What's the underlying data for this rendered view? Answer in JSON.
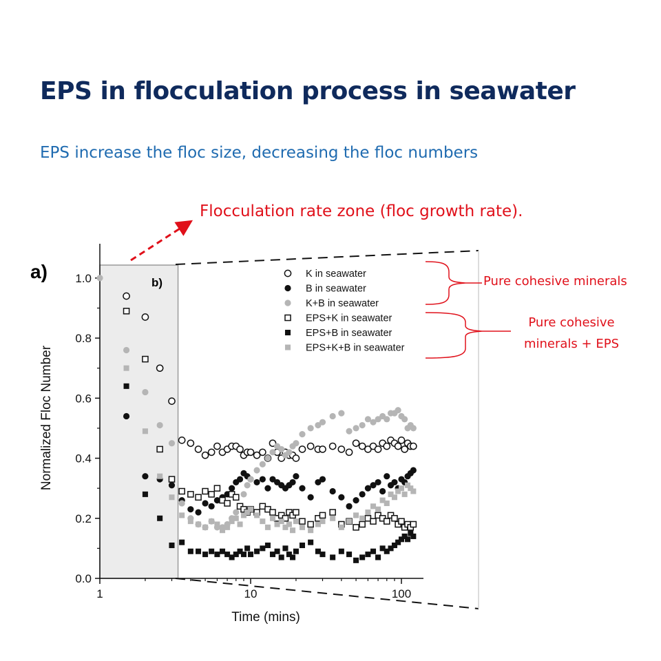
{
  "slide": {
    "title": "EPS in flocculation process in seawater",
    "subtitle": "EPS increase the floc size, decreasing the floc numbers",
    "zone_annotation": "Flocculation rate zone (floc growth rate).",
    "group1_label": "Pure cohesive minerals",
    "group2_label_line1": "Pure cohesive",
    "group2_label_line2": "minerals + EPS",
    "annotation_color": "#e0101a",
    "title_color": "#0f2a5c",
    "subtitle_color": "#1f6bb0"
  },
  "chart_data": {
    "type": "scatter",
    "panel_label": "a)",
    "inset_label": "b)",
    "xlabel": "Time (mins)",
    "ylabel": "Normalized Floc Number",
    "xscale": "log",
    "xlim": [
      1,
      140
    ],
    "ylim": [
      0,
      1.05
    ],
    "highlight_zone_x": [
      1,
      3.3
    ],
    "x_ticks": [
      {
        "value": 1,
        "label": "1"
      },
      {
        "value": 10,
        "label": "10"
      },
      {
        "value": 100,
        "label": "100"
      }
    ],
    "y_ticks": [
      {
        "value": 0.0,
        "label": "0.0"
      },
      {
        "value": 0.2,
        "label": "0.2"
      },
      {
        "value": 0.4,
        "label": "0.4"
      },
      {
        "value": 0.6,
        "label": "0.6"
      },
      {
        "value": 0.8,
        "label": "0.8"
      },
      {
        "value": 1.0,
        "label": "1.0"
      }
    ],
    "legend_position": "top-right",
    "series": [
      {
        "name": "K in seawater",
        "marker": "circle-open",
        "color": "#111111",
        "x": [
          1.5,
          2,
          2.5,
          3,
          3.5,
          4,
          4.5,
          5,
          5.5,
          6,
          6.5,
          7,
          7.5,
          8,
          8.5,
          9,
          9.5,
          10,
          11,
          12,
          13,
          14,
          15,
          16,
          17,
          18,
          19,
          20,
          22,
          25,
          28,
          30,
          35,
          40,
          45,
          50,
          55,
          60,
          65,
          70,
          75,
          80,
          85,
          90,
          95,
          100,
          105,
          110,
          115,
          120
        ],
        "y": [
          0.94,
          0.87,
          0.7,
          0.59,
          0.46,
          0.45,
          0.43,
          0.41,
          0.42,
          0.44,
          0.42,
          0.43,
          0.44,
          0.44,
          0.43,
          0.41,
          0.42,
          0.42,
          0.41,
          0.42,
          0.4,
          0.45,
          0.42,
          0.4,
          0.42,
          0.41,
          0.41,
          0.4,
          0.43,
          0.44,
          0.43,
          0.43,
          0.44,
          0.43,
          0.42,
          0.45,
          0.44,
          0.43,
          0.44,
          0.43,
          0.45,
          0.44,
          0.46,
          0.45,
          0.44,
          0.46,
          0.43,
          0.45,
          0.44,
          0.44
        ]
      },
      {
        "name": "B in seawater",
        "marker": "circle-filled",
        "color": "#111111",
        "x": [
          1.5,
          2,
          2.5,
          3,
          3.5,
          4,
          4.5,
          5,
          5.5,
          6,
          6.5,
          7,
          7.5,
          8,
          8.5,
          9,
          9.5,
          10,
          11,
          12,
          13,
          14,
          15,
          16,
          17,
          18,
          19,
          20,
          22,
          25,
          28,
          30,
          35,
          40,
          45,
          50,
          55,
          60,
          65,
          70,
          75,
          80,
          85,
          90,
          95,
          100,
          105,
          110,
          115,
          120
        ],
        "y": [
          0.54,
          0.34,
          0.33,
          0.31,
          0.26,
          0.23,
          0.22,
          0.25,
          0.24,
          0.26,
          0.27,
          0.28,
          0.3,
          0.32,
          0.33,
          0.35,
          0.34,
          0.33,
          0.32,
          0.33,
          0.3,
          0.33,
          0.32,
          0.31,
          0.3,
          0.31,
          0.32,
          0.34,
          0.3,
          0.27,
          0.32,
          0.33,
          0.29,
          0.27,
          0.24,
          0.26,
          0.28,
          0.3,
          0.31,
          0.32,
          0.29,
          0.34,
          0.31,
          0.32,
          0.3,
          0.33,
          0.32,
          0.34,
          0.35,
          0.36
        ]
      },
      {
        "name": "K+B in seawater",
        "marker": "circle-filled",
        "color": "#b5b5b5",
        "x": [
          1,
          1.5,
          2,
          2.5,
          3,
          3.5,
          4,
          4.5,
          5,
          5.5,
          6,
          6.5,
          7,
          7.5,
          8,
          8.5,
          9,
          9.5,
          10,
          11,
          12,
          13,
          14,
          15,
          16,
          17,
          18,
          19,
          20,
          22,
          25,
          28,
          30,
          35,
          40,
          45,
          50,
          55,
          60,
          65,
          70,
          75,
          80,
          85,
          90,
          95,
          100,
          105,
          110,
          115,
          120
        ],
        "y": [
          1.0,
          0.76,
          0.62,
          0.51,
          0.45,
          0.25,
          0.2,
          0.18,
          0.17,
          0.19,
          0.17,
          0.17,
          0.18,
          0.2,
          0.22,
          0.24,
          0.28,
          0.31,
          0.33,
          0.36,
          0.38,
          0.4,
          0.42,
          0.44,
          0.43,
          0.41,
          0.42,
          0.44,
          0.45,
          0.48,
          0.5,
          0.51,
          0.52,
          0.54,
          0.55,
          0.49,
          0.5,
          0.51,
          0.53,
          0.52,
          0.53,
          0.54,
          0.53,
          0.55,
          0.55,
          0.56,
          0.54,
          0.53,
          0.5,
          0.51,
          0.5
        ]
      },
      {
        "name": "EPS+K in seawater",
        "marker": "square-open",
        "color": "#111111",
        "x": [
          1.5,
          2,
          2.5,
          3,
          3.5,
          4,
          4.5,
          5,
          5.5,
          6,
          6.5,
          7,
          7.5,
          8,
          8.5,
          9,
          9.5,
          10,
          11,
          12,
          13,
          14,
          15,
          16,
          17,
          18,
          19,
          20,
          22,
          25,
          28,
          30,
          35,
          40,
          45,
          50,
          55,
          60,
          65,
          70,
          75,
          80,
          85,
          90,
          95,
          100,
          105,
          110,
          115,
          120
        ],
        "y": [
          0.89,
          0.73,
          0.43,
          0.33,
          0.29,
          0.28,
          0.27,
          0.29,
          0.28,
          0.3,
          0.26,
          0.25,
          0.28,
          0.27,
          0.24,
          0.23,
          0.22,
          0.23,
          0.22,
          0.24,
          0.23,
          0.22,
          0.2,
          0.21,
          0.2,
          0.22,
          0.21,
          0.22,
          0.19,
          0.18,
          0.2,
          0.21,
          0.22,
          0.18,
          0.19,
          0.17,
          0.18,
          0.2,
          0.19,
          0.21,
          0.2,
          0.19,
          0.21,
          0.2,
          0.18,
          0.19,
          0.17,
          0.18,
          0.17,
          0.18
        ]
      },
      {
        "name": "EPS+B in seawater",
        "marker": "square-filled",
        "color": "#111111",
        "x": [
          1.5,
          2,
          2.5,
          3,
          3.5,
          4,
          4.5,
          5,
          5.5,
          6,
          6.5,
          7,
          7.5,
          8,
          8.5,
          9,
          9.5,
          10,
          11,
          12,
          13,
          14,
          15,
          16,
          17,
          18,
          19,
          20,
          22,
          25,
          28,
          30,
          35,
          40,
          45,
          50,
          55,
          60,
          65,
          70,
          75,
          80,
          85,
          90,
          95,
          100,
          105,
          110,
          115,
          120
        ],
        "y": [
          0.64,
          0.28,
          0.2,
          0.11,
          0.12,
          0.09,
          0.09,
          0.08,
          0.09,
          0.08,
          0.09,
          0.08,
          0.07,
          0.08,
          0.09,
          0.08,
          0.1,
          0.08,
          0.09,
          0.1,
          0.11,
          0.08,
          0.09,
          0.07,
          0.1,
          0.08,
          0.07,
          0.09,
          0.11,
          0.12,
          0.09,
          0.08,
          0.07,
          0.09,
          0.08,
          0.06,
          0.07,
          0.08,
          0.09,
          0.07,
          0.1,
          0.09,
          0.1,
          0.11,
          0.12,
          0.13,
          0.14,
          0.13,
          0.15,
          0.14
        ]
      },
      {
        "name": "EPS+K+B in seawater",
        "marker": "square-filled",
        "color": "#b5b5b5",
        "x": [
          1.5,
          2,
          2.5,
          3,
          3.5,
          4,
          4.5,
          5,
          5.5,
          6,
          6.5,
          7,
          7.5,
          8,
          8.5,
          9,
          9.5,
          10,
          11,
          12,
          13,
          14,
          15,
          16,
          17,
          18,
          19,
          20,
          22,
          25,
          28,
          30,
          35,
          40,
          45,
          50,
          55,
          60,
          65,
          70,
          75,
          80,
          85,
          90,
          95,
          100,
          105,
          110,
          115,
          120
        ],
        "y": [
          0.7,
          0.49,
          0.34,
          0.27,
          0.21,
          0.19,
          0.18,
          0.17,
          0.19,
          0.18,
          0.16,
          0.17,
          0.19,
          0.2,
          0.18,
          0.21,
          0.22,
          0.23,
          0.21,
          0.19,
          0.17,
          0.2,
          0.18,
          0.19,
          0.17,
          0.18,
          0.16,
          0.19,
          0.17,
          0.16,
          0.18,
          0.19,
          0.2,
          0.17,
          0.19,
          0.21,
          0.2,
          0.22,
          0.24,
          0.23,
          0.26,
          0.25,
          0.28,
          0.27,
          0.29,
          0.3,
          0.28,
          0.31,
          0.3,
          0.29
        ]
      }
    ]
  }
}
